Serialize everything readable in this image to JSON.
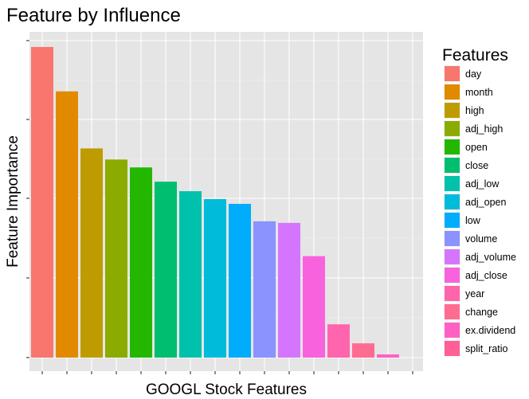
{
  "chart_data": {
    "type": "bar",
    "title": "Feature by Influence",
    "xlabel": "GOOGL Stock Features",
    "ylabel": "Feature Importance",
    "y_tick_labels_shown": false,
    "x_tick_labels_shown": false,
    "ylim": [
      0,
      1.0
    ],
    "grid": true,
    "legend": {
      "title": "Features",
      "position": "right"
    },
    "categories": [
      "day",
      "month",
      "high",
      "adj_high",
      "open",
      "close",
      "adj_low",
      "adj_open",
      "low",
      "volume",
      "adj_volume",
      "adj_close",
      "year",
      "change",
      "ex.dividend",
      "split_ratio"
    ],
    "values": [
      0.98,
      0.84,
      0.66,
      0.625,
      0.6,
      0.555,
      0.525,
      0.5,
      0.485,
      0.43,
      0.425,
      0.32,
      0.105,
      0.045,
      0.01,
      0.0
    ],
    "colors": [
      "#F8766D",
      "#E18A00",
      "#BE9C00",
      "#8CAB00",
      "#24B700",
      "#00BE70",
      "#00C1AB",
      "#00BBDA",
      "#00ACFC",
      "#8B93FF",
      "#D575FE",
      "#F962DD",
      "#FF65AC",
      "#FF6C91",
      "#FF61C3",
      "#FF5F96"
    ]
  }
}
